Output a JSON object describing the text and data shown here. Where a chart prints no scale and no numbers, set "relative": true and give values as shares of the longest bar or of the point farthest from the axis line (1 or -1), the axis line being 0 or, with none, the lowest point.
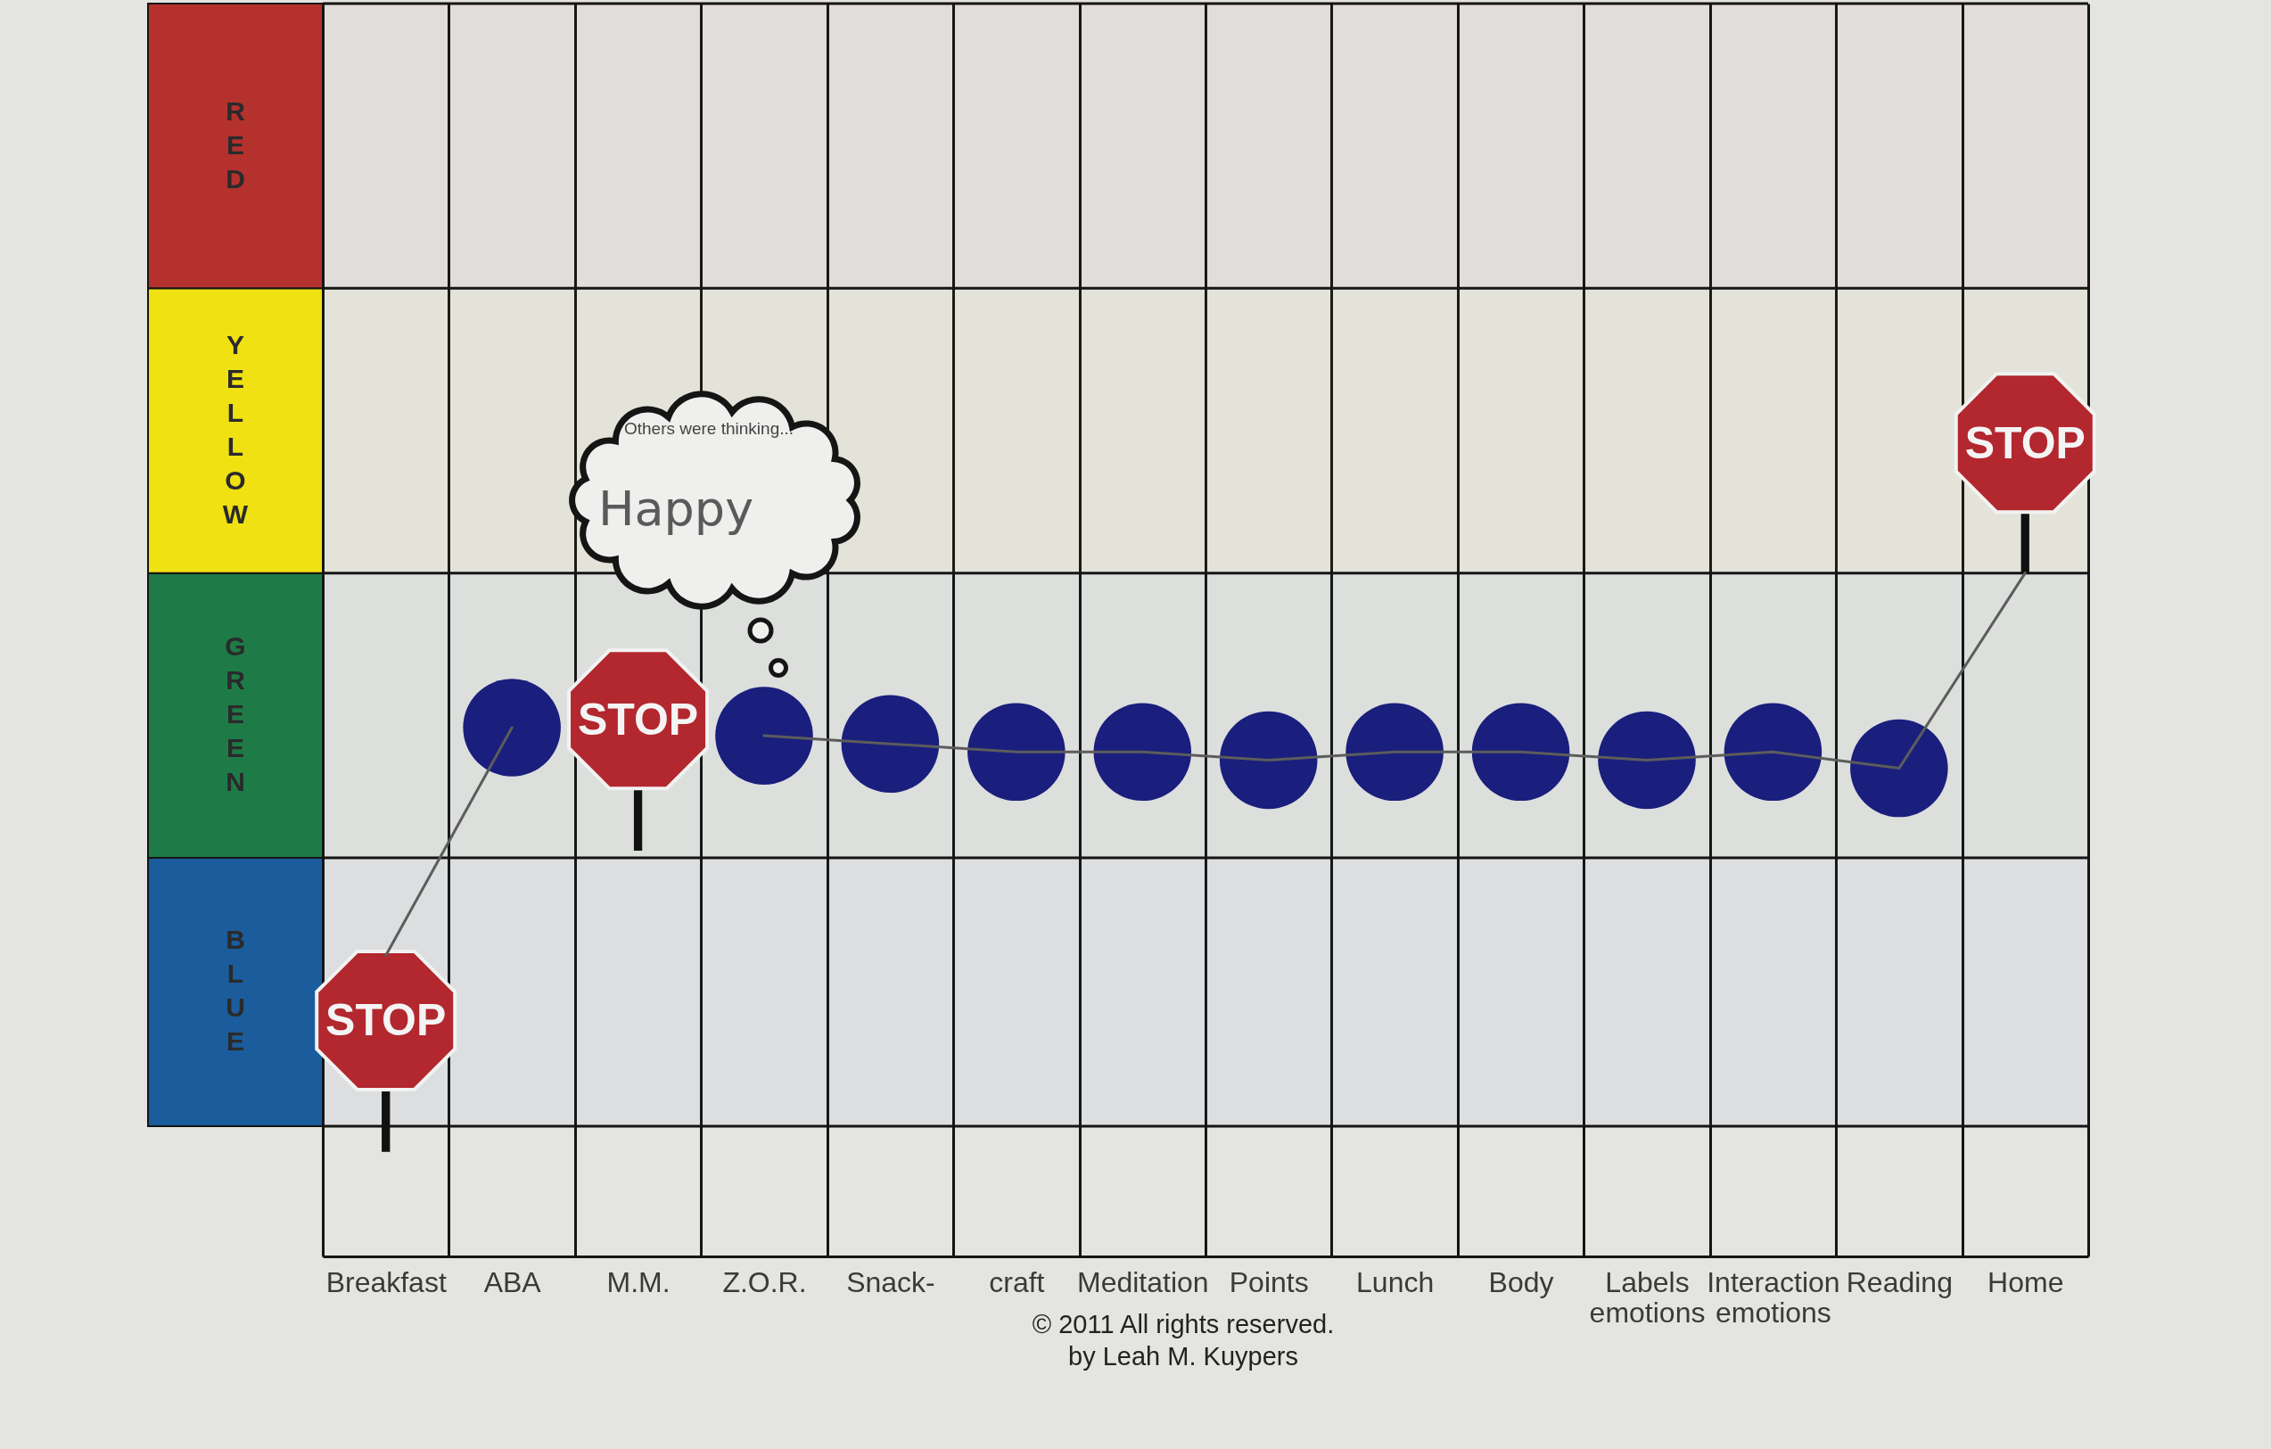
{
  "chart_data": {
    "type": "line",
    "relative": true,
    "categories": [
      "Breakfast",
      "ABA",
      "M.M.",
      "Z.O.R.",
      "Snack-",
      "craft",
      "Meditation",
      "Points",
      "Lunch",
      "Body",
      "Labels emotions",
      "Interaction emotions",
      "Reading",
      "Home"
    ],
    "series": [
      {
        "color": "#5c5c5c",
        "values": [
          0.37,
          0.65,
          null,
          0.64,
          0.63,
          0.62,
          0.62,
          0.61,
          0.62,
          0.62,
          0.61,
          0.62,
          0.6,
          0.84
        ]
      },
      {
        "type": "scatter",
        "color": "#1a1e7c",
        "marker": "circle",
        "values": [
          null,
          0.65,
          null,
          0.64,
          0.63,
          0.62,
          0.62,
          0.61,
          0.62,
          0.62,
          0.61,
          0.62,
          0.6,
          null
        ]
      },
      {
        "type": "scatter",
        "color": "#b3272e",
        "marker": "none",
        "values": [
          0.29,
          null,
          0.66,
          null,
          null,
          null,
          null,
          null,
          null,
          null,
          null,
          null,
          null,
          1.0
        ]
      }
    ],
    "bands": [
      {
        "axis": "y",
        "from": 0.16,
        "to": 0.49,
        "label": "BLUE",
        "color": "#1b5c9c"
      },
      {
        "axis": "y",
        "from": 0.49,
        "to": 0.84,
        "label": "GREEN",
        "color": "#1e7b48"
      },
      {
        "axis": "y",
        "from": 0.84,
        "to": 1.19,
        "label": "YELLOW",
        "color": "#f0e112"
      },
      {
        "axis": "y",
        "from": 1.19,
        "to": 1.54,
        "label": "RED",
        "color": "#b5312e"
      }
    ],
    "grid": "x",
    "annotations": [
      "Others were thinking...",
      "Happy",
      {
        "text": "STOP",
        "x": "Breakfast",
        "y": 0.29
      },
      {
        "text": "STOP",
        "x": "M.M.",
        "y": 0.66
      },
      {
        "text": "STOP",
        "x": "Home",
        "y": 1.0
      },
      "© 2011 All rights reserved.",
      "by Leah M. Kuypers"
    ]
  }
}
